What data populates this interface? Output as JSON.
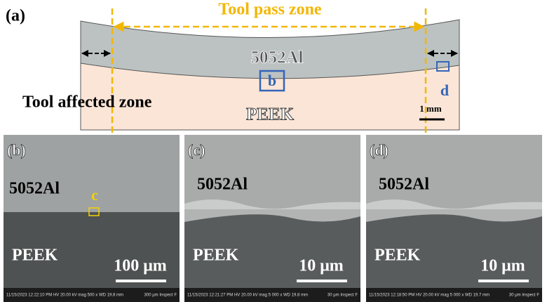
{
  "panel_a": {
    "label": "(a)",
    "zone_title": "Tool pass zone",
    "top_material": "5052Al",
    "box_b": "b",
    "box_d": "d",
    "affected_label": "Tool affected zone",
    "bottom_material": "PEEK",
    "scale": "1 mm"
  },
  "panels": [
    {
      "label": "(b)",
      "top_material": "5052Al",
      "bottom_material": "PEEK",
      "marker": "c",
      "scale": "100 μm",
      "info_left": "11/15/2023 12:22:10 PM  HV 20.00 kV  mag 500 x  WD 19.8 mm",
      "info_right": "300 μm  Inspect F"
    },
    {
      "label": "(c)",
      "top_material": "5052Al",
      "bottom_material": "PEEK",
      "scale": "10 μm",
      "info_left": "11/15/2023 12:21:27 PM  HV 20.00 kV  mag 5 000 x  WD 19.8 mm",
      "info_right": "30 μm  Inspect F"
    },
    {
      "label": "(d)",
      "top_material": "5052Al",
      "bottom_material": "PEEK",
      "scale": "10 μm",
      "info_left": "11/15/2023 12:18:50 PM  HV 20.00 kV  mag 5 000 x  WD 19.7 mm",
      "info_right": "30 μm  Inspect F"
    }
  ]
}
